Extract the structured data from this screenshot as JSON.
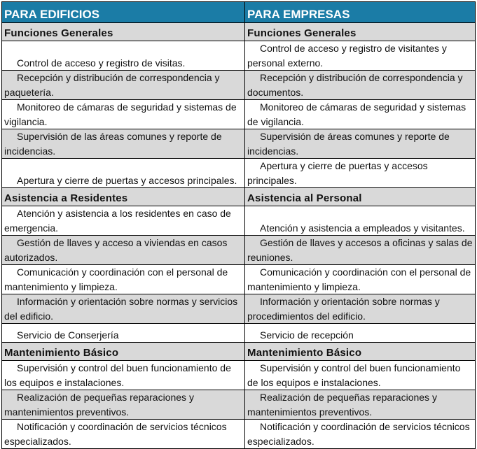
{
  "headers": [
    "PARA EDIFICIOS",
    "PARA EMPRESAS"
  ],
  "sections": [
    {
      "titles": [
        "Funciones Generales",
        "Funciones Generales"
      ],
      "rows": [
        [
          "Control de acceso y registro de visitas.",
          "Control de acceso y registro de visitantes y personal externo."
        ],
        [
          "Recepción y distribución de correspondencia y paquetería.",
          "Recepción y distribución de correspondencia y documentos."
        ],
        [
          "Monitoreo de cámaras de seguridad y sistemas de vigilancia.",
          "Monitoreo de cámaras de seguridad y sistemas de vigilancia."
        ],
        [
          "Supervisión de las áreas comunes y reporte de incidencias.",
          "Supervisión de áreas comunes y reporte de incidencias."
        ],
        [
          "Apertura y cierre de puertas y accesos principales.",
          "Apertura y cierre de puertas y accesos principales."
        ]
      ]
    },
    {
      "titles": [
        "Asistencia a Residentes",
        "Asistencia al Personal"
      ],
      "rows": [
        [
          "Atención y asistencia a los residentes en caso de emergencia.",
          "Atención y asistencia a empleados y visitantes."
        ],
        [
          "Gestión de llaves y acceso a viviendas en casos autorizados.",
          "Gestión de llaves y accesos a oficinas y salas de reuniones."
        ],
        [
          "Comunicación y coordinación con el personal de mantenimiento y limpieza.",
          "Comunicación y coordinación con el personal de mantenimiento y limpieza."
        ],
        [
          "Información y orientación sobre normas y servicios del edificio.",
          "Información y orientación sobre normas y procedimientos del edificio."
        ],
        [
          "Servicio de Conserjería",
          "Servicio de recepción"
        ]
      ]
    },
    {
      "titles": [
        "Mantenimiento Básico",
        "Mantenimiento Básico"
      ],
      "rows": [
        [
          "Supervisión y control del buen funcionamiento de los equipos e instalaciones.",
          "Supervisión y control del buen funcionamiento de los equipos e instalaciones."
        ],
        [
          "Realización de pequeñas reparaciones y mantenimientos preventivos.",
          "Realización de pequeñas reparaciones y mantenimientos preventivos."
        ],
        [
          "Notificación y coordinación de servicios técnicos especializados.",
          "Notificación y coordinación de servicios técnicos especializados."
        ]
      ]
    }
  ],
  "colors": {
    "header_bg": "#1b7ca6",
    "shaded_row": "#d9d9d9"
  }
}
